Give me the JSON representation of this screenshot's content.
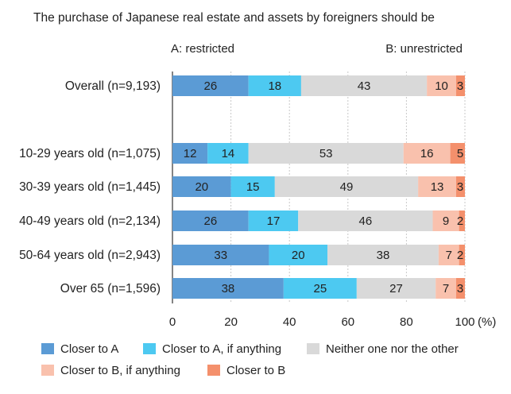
{
  "chart_data": {
    "type": "bar",
    "orientation": "horizontal",
    "stacked": true,
    "title": "The purchase of Japanese real estate and assets by foreigners should be",
    "end_label_a": "A: restricted",
    "end_label_b": "B: unrestricted",
    "categories": [
      "Overall (n=9,193)",
      "10-29 years old (n=1,075)",
      "30-39 years old (n=1,445)",
      "40-49 years old (n=2,134)",
      "50-64 years old (n=2,943)",
      "Over 65 (n=1,596)"
    ],
    "series": [
      {
        "name": "Closer to A",
        "color": "#5b9bd5",
        "values": [
          26,
          12,
          20,
          26,
          33,
          38
        ]
      },
      {
        "name": "Closer to A, if anything",
        "color": "#4dc9f1",
        "values": [
          18,
          14,
          15,
          17,
          20,
          25
        ]
      },
      {
        "name": "Neither one nor the other",
        "color": "#d9d9d9",
        "values": [
          43,
          53,
          49,
          46,
          38,
          27
        ]
      },
      {
        "name": "Closer to B, if anything",
        "color": "#f9c1ad",
        "values": [
          10,
          16,
          13,
          9,
          7,
          7
        ]
      },
      {
        "name": "Closer to B",
        "color": "#f4906c",
        "values": [
          3,
          5,
          3,
          2,
          2,
          3
        ]
      }
    ],
    "x_ticks": [
      "0",
      "20",
      "40",
      "60",
      "80",
      "100"
    ],
    "x_unit": "(%)",
    "xlim": [
      0,
      100
    ],
    "grid": true,
    "legend_position": "bottom"
  }
}
